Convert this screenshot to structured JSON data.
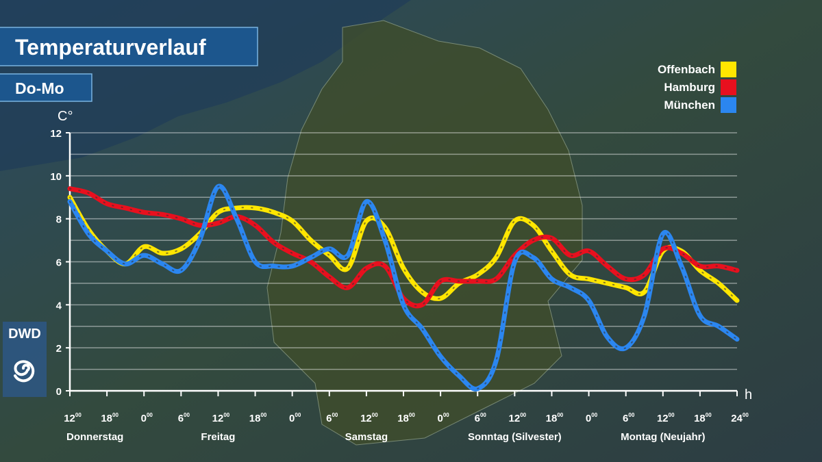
{
  "chart_data": {
    "type": "line",
    "title": "Temperaturverlauf",
    "subtitle": "Do-Mo",
    "y_label": "C°",
    "x_label": "h",
    "logo": "DWD",
    "tick_suffix": "00",
    "xlim": [
      0,
      108
    ],
    "ylim": [
      0,
      12
    ],
    "yticks": [
      0,
      2,
      4,
      6,
      8,
      10,
      12
    ],
    "minor_yticks": [
      1,
      3,
      5,
      7,
      9,
      11
    ],
    "grid": true,
    "legend": "top-right",
    "xticks": [
      {
        "value": 0,
        "label": "12"
      },
      {
        "value": 6,
        "label": "18"
      },
      {
        "value": 12,
        "label": "0"
      },
      {
        "value": 18,
        "label": "6"
      },
      {
        "value": 24,
        "label": "12"
      },
      {
        "value": 30,
        "label": "18"
      },
      {
        "value": 36,
        "label": "0"
      },
      {
        "value": 42,
        "label": "6"
      },
      {
        "value": 48,
        "label": "12"
      },
      {
        "value": 54,
        "label": "18"
      },
      {
        "value": 60,
        "label": "0"
      },
      {
        "value": 66,
        "label": "6"
      },
      {
        "value": 72,
        "label": "12"
      },
      {
        "value": 78,
        "label": "18"
      },
      {
        "value": 84,
        "label": "0"
      },
      {
        "value": 90,
        "label": "6"
      },
      {
        "value": 96,
        "label": "12"
      },
      {
        "value": 102,
        "label": "18"
      },
      {
        "value": 108,
        "label": "24"
      }
    ],
    "days": [
      {
        "value": 0,
        "label": "Donnerstag"
      },
      {
        "value": 24,
        "label": "Freitag"
      },
      {
        "value": 48,
        "label": "Samstag"
      },
      {
        "value": 72,
        "label": "Sonntag (Silvester)"
      },
      {
        "value": 96,
        "label": "Montag (Neujahr)"
      }
    ],
    "x": [
      0,
      3,
      6,
      9,
      12,
      15,
      18,
      21,
      24,
      27,
      30,
      33,
      36,
      39,
      42,
      45,
      48,
      51,
      54,
      57,
      60,
      63,
      66,
      69,
      72,
      75,
      78,
      81,
      84,
      87,
      90,
      93,
      96,
      99,
      102,
      105,
      108
    ],
    "series": [
      {
        "name": "Offenbach",
        "color": "#ffe600",
        "values": [
          9.0,
          7.5,
          6.5,
          5.9,
          6.7,
          6.4,
          6.6,
          7.3,
          8.3,
          8.5,
          8.5,
          8.3,
          7.9,
          7.0,
          6.3,
          5.7,
          7.9,
          7.6,
          5.7,
          4.6,
          4.3,
          5.0,
          5.4,
          6.2,
          7.9,
          7.7,
          6.5,
          5.4,
          5.2,
          5.0,
          4.8,
          4.6,
          6.5,
          6.5,
          5.6,
          5.0,
          4.2
        ]
      },
      {
        "name": "Hamburg",
        "color": "#e8101e",
        "values": [
          9.4,
          9.2,
          8.7,
          8.5,
          8.3,
          8.2,
          8.0,
          7.7,
          7.8,
          8.1,
          7.7,
          6.9,
          6.4,
          6.0,
          5.3,
          4.8,
          5.7,
          5.8,
          4.3,
          4.0,
          5.1,
          5.1,
          5.1,
          5.2,
          6.3,
          7.0,
          7.1,
          6.3,
          6.5,
          5.8,
          5.2,
          5.4,
          6.6,
          6.4,
          5.8,
          5.8,
          5.6
        ]
      },
      {
        "name": "München",
        "color": "#2b86f0",
        "values": [
          8.8,
          7.3,
          6.5,
          5.9,
          6.3,
          5.9,
          5.6,
          7.0,
          9.5,
          8.0,
          6.0,
          5.8,
          5.8,
          6.2,
          6.6,
          6.3,
          8.8,
          7.0,
          4.0,
          2.9,
          1.6,
          0.7,
          0.1,
          1.4,
          6.0,
          6.2,
          5.2,
          4.8,
          4.2,
          2.5,
          2.0,
          3.5,
          7.3,
          5.8,
          3.5,
          3.0,
          2.4
        ]
      }
    ]
  }
}
